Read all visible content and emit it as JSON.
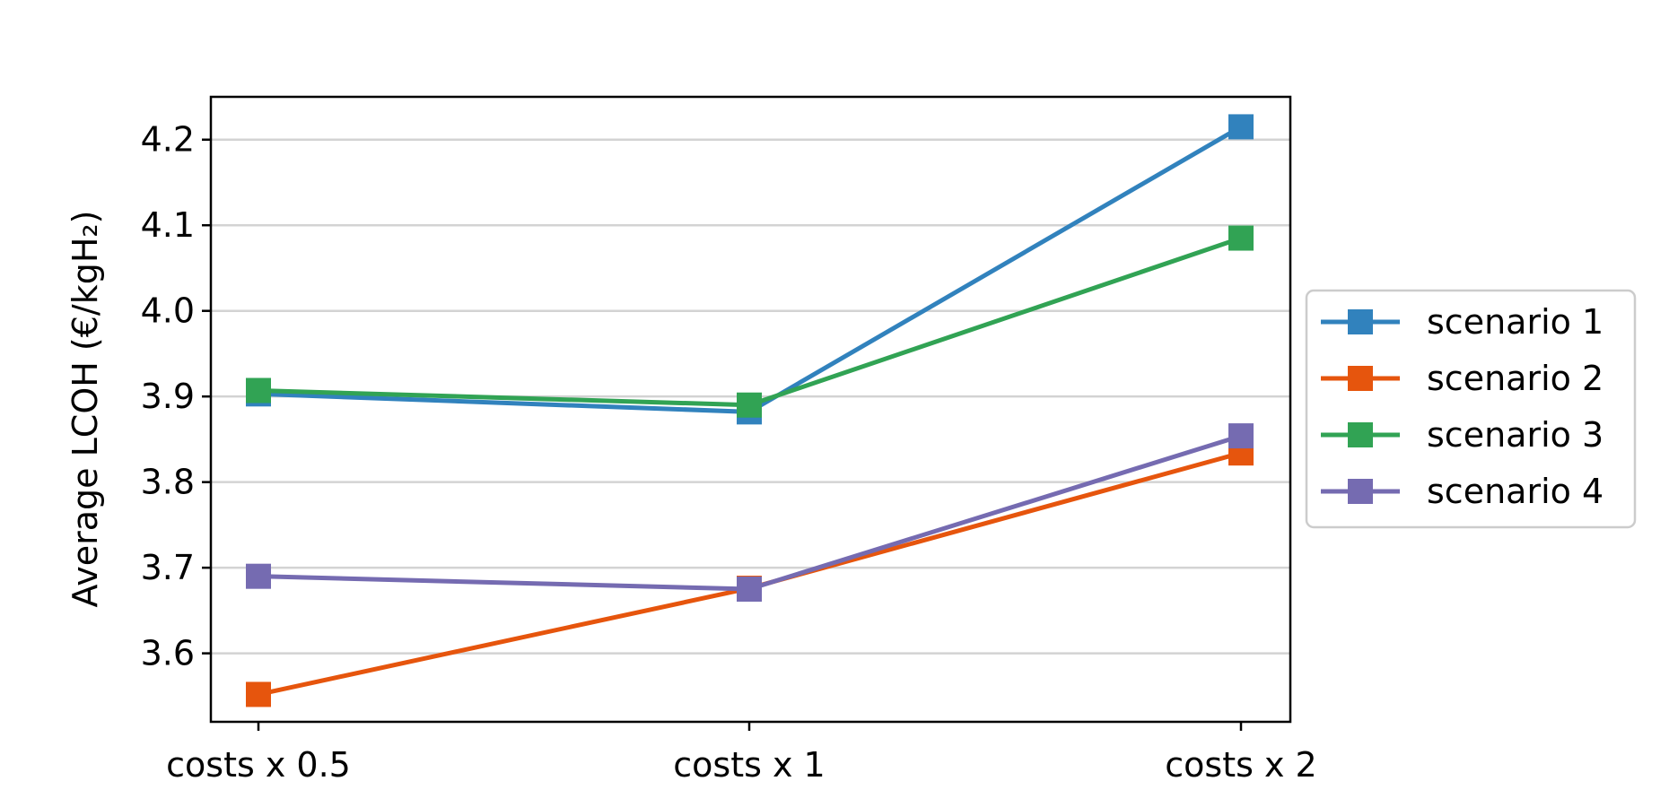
{
  "chart_data": {
    "type": "line",
    "categories": [
      "costs x 0.5",
      "costs x 1",
      "costs x 2"
    ],
    "series": [
      {
        "name": "scenario 1",
        "color": "#3182bd",
        "marker": "square",
        "values": [
          3.903,
          3.882,
          4.215
        ]
      },
      {
        "name": "scenario 2",
        "color": "#e6550d",
        "marker": "square",
        "values": [
          3.552,
          3.676,
          3.834
        ]
      },
      {
        "name": "scenario 3",
        "color": "#31a354",
        "marker": "square",
        "values": [
          3.907,
          3.89,
          4.085
        ]
      },
      {
        "name": "scenario 4",
        "color": "#756bb1",
        "marker": "square",
        "values": [
          3.69,
          3.675,
          3.854
        ]
      }
    ],
    "title": "",
    "xlabel": "",
    "ylabel": "Average LCOH (€/kgH₂)",
    "ylim": [
      3.52,
      4.25
    ],
    "yticks": [
      3.6,
      3.7,
      3.8,
      3.9,
      4.0,
      4.1,
      4.2
    ],
    "ytick_labels": [
      "3.6",
      "3.7",
      "3.8",
      "3.9",
      "4.0",
      "4.1",
      "4.2"
    ],
    "grid": "horizontal",
    "grid_color": "#d3d3d3",
    "legend_position": "outside-right"
  }
}
